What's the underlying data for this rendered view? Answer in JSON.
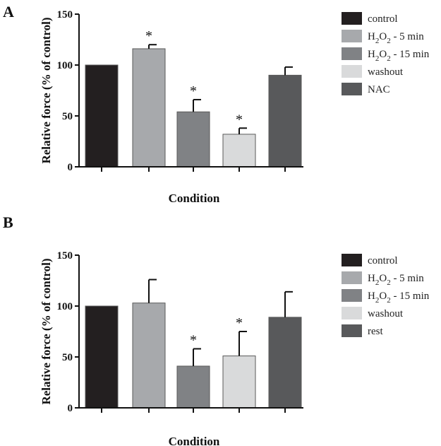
{
  "chart_data": [
    {
      "panel": "A",
      "type": "bar",
      "xlabel": "Condition",
      "ylabel": "Relative force (% of control)",
      "ylim": [
        0,
        150
      ],
      "yticks": [
        "0",
        "50",
        "100",
        "150"
      ],
      "categories": [
        "control",
        "H2O2 - 5 min",
        "H2O2 - 15 min",
        "washout",
        "NAC"
      ],
      "values": [
        100,
        116,
        54,
        32,
        90
      ],
      "errors": [
        0,
        4,
        12,
        6,
        8
      ],
      "significant": [
        false,
        true,
        true,
        true,
        false
      ],
      "significance_marker": "*",
      "colors": [
        "#231f20",
        "#a7a9ac",
        "#808285",
        "#d9dadb",
        "#58595b"
      ],
      "legend": [
        {
          "label": "control"
        },
        {
          "label": "H",
          "sub1": "2",
          "mid": "O",
          "sub2": "2",
          "tail": " - 5 min"
        },
        {
          "label": "H",
          "sub1": "2",
          "mid": "O",
          "sub2": "2",
          "tail": " - 15 min"
        },
        {
          "label": "washout"
        },
        {
          "label": "NAC"
        }
      ]
    },
    {
      "panel": "B",
      "type": "bar",
      "xlabel": "Condition",
      "ylabel": "Relative force (% of control)",
      "ylim": [
        0,
        150
      ],
      "yticks": [
        "0",
        "50",
        "100",
        "150"
      ],
      "categories": [
        "control",
        "H2O2 - 5 min",
        "H2O2 - 15 min",
        "washout",
        "rest"
      ],
      "values": [
        100,
        103,
        41,
        51,
        89
      ],
      "errors": [
        0,
        23,
        17,
        24,
        25
      ],
      "significant": [
        false,
        false,
        true,
        true,
        false
      ],
      "significance_marker": "*",
      "colors": [
        "#231f20",
        "#a7a9ac",
        "#808285",
        "#d9dadb",
        "#58595b"
      ],
      "legend": [
        {
          "label": "control"
        },
        {
          "label": "H",
          "sub1": "2",
          "mid": "O",
          "sub2": "2",
          "tail": " - 5 min"
        },
        {
          "label": "H",
          "sub1": "2",
          "mid": "O",
          "sub2": "2",
          "tail": " - 15 min"
        },
        {
          "label": "washout"
        },
        {
          "label": "rest"
        }
      ]
    }
  ]
}
